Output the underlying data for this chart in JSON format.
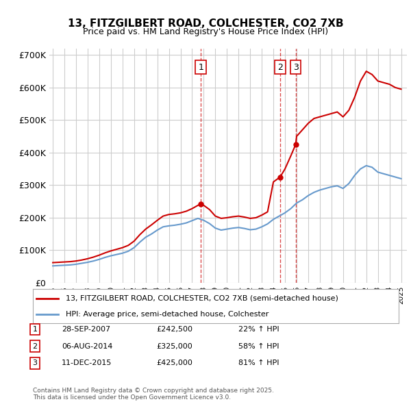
{
  "title": "13, FITZGILBERT ROAD, COLCHESTER, CO2 7XB",
  "subtitle": "Price paid vs. HM Land Registry's House Price Index (HPI)",
  "ylabel": "",
  "ylim": [
    0,
    720000
  ],
  "yticks": [
    0,
    100000,
    200000,
    300000,
    400000,
    500000,
    600000,
    700000
  ],
  "ytick_labels": [
    "£0",
    "£100K",
    "£200K",
    "£300K",
    "£400K",
    "£500K",
    "£600K",
    "£700K"
  ],
  "background_color": "#ffffff",
  "grid_color": "#cccccc",
  "sale_color": "#cc0000",
  "hpi_color": "#6699cc",
  "sale_label": "13, FITZGILBERT ROAD, COLCHESTER, CO2 7XB (semi-detached house)",
  "hpi_label": "HPI: Average price, semi-detached house, Colchester",
  "transactions": [
    {
      "num": 1,
      "date": "28-SEP-2007",
      "price": 242500,
      "pct": "22%",
      "dir": "↑",
      "year": 2007.75
    },
    {
      "num": 2,
      "date": "06-AUG-2014",
      "price": 325000,
      "pct": "58%",
      "dir": "↑",
      "year": 2014.58
    },
    {
      "num": 3,
      "date": "11-DEC-2015",
      "price": 425000,
      "pct": "81%",
      "dir": "↑",
      "year": 2015.92
    }
  ],
  "footer": "Contains HM Land Registry data © Crown copyright and database right 2025.\nThis data is licensed under the Open Government Licence v3.0.",
  "sale_years": [
    1995.0,
    1995.5,
    1996.0,
    1996.5,
    1997.0,
    1997.5,
    1998.0,
    1998.5,
    1999.0,
    1999.5,
    2000.0,
    2000.5,
    2001.0,
    2001.5,
    2002.0,
    2002.5,
    2003.0,
    2003.5,
    2004.0,
    2004.5,
    2005.0,
    2005.5,
    2006.0,
    2006.5,
    2007.0,
    2007.5,
    2007.75,
    2008.0,
    2008.5,
    2009.0,
    2009.5,
    2010.0,
    2010.5,
    2011.0,
    2011.5,
    2012.0,
    2012.5,
    2013.0,
    2013.5,
    2014.0,
    2014.58,
    2015.0,
    2015.5,
    2015.92,
    2016.0,
    2016.5,
    2017.0,
    2017.5,
    2018.0,
    2018.5,
    2019.0,
    2019.5,
    2020.0,
    2020.5,
    2021.0,
    2021.5,
    2022.0,
    2022.5,
    2023.0,
    2023.5,
    2024.0,
    2024.5,
    2025.0
  ],
  "sale_values": [
    62000,
    63000,
    64000,
    65000,
    67000,
    70000,
    74000,
    79000,
    85000,
    92000,
    98000,
    103000,
    108000,
    115000,
    128000,
    148000,
    165000,
    178000,
    192000,
    205000,
    210000,
    212000,
    215000,
    220000,
    228000,
    238000,
    242500,
    238000,
    225000,
    205000,
    198000,
    200000,
    203000,
    205000,
    202000,
    198000,
    200000,
    208000,
    218000,
    310000,
    325000,
    350000,
    390000,
    425000,
    450000,
    470000,
    490000,
    505000,
    510000,
    515000,
    520000,
    525000,
    510000,
    530000,
    570000,
    620000,
    650000,
    640000,
    620000,
    615000,
    610000,
    600000,
    595000
  ],
  "hpi_years": [
    1995.0,
    1995.5,
    1996.0,
    1996.5,
    1997.0,
    1997.5,
    1998.0,
    1998.5,
    1999.0,
    1999.5,
    2000.0,
    2000.5,
    2001.0,
    2001.5,
    2002.0,
    2002.5,
    2003.0,
    2003.5,
    2004.0,
    2004.5,
    2005.0,
    2005.5,
    2006.0,
    2006.5,
    2007.0,
    2007.5,
    2008.0,
    2008.5,
    2009.0,
    2009.5,
    2010.0,
    2010.5,
    2011.0,
    2011.5,
    2012.0,
    2012.5,
    2013.0,
    2013.5,
    2014.0,
    2014.5,
    2015.0,
    2015.5,
    2016.0,
    2016.5,
    2017.0,
    2017.5,
    2018.0,
    2018.5,
    2019.0,
    2019.5,
    2020.0,
    2020.5,
    2021.0,
    2021.5,
    2022.0,
    2022.5,
    2023.0,
    2023.5,
    2024.0,
    2024.5,
    2025.0
  ],
  "hpi_values": [
    52000,
    53000,
    54000,
    55000,
    57000,
    60000,
    63000,
    67000,
    72000,
    78000,
    83000,
    87000,
    91000,
    97000,
    108000,
    125000,
    140000,
    150000,
    162000,
    172000,
    175000,
    177000,
    180000,
    184000,
    191000,
    198000,
    192000,
    182000,
    168000,
    162000,
    165000,
    168000,
    170000,
    167000,
    163000,
    165000,
    172000,
    181000,
    195000,
    205000,
    215000,
    228000,
    245000,
    255000,
    268000,
    278000,
    285000,
    290000,
    295000,
    298000,
    290000,
    305000,
    330000,
    350000,
    360000,
    355000,
    340000,
    335000,
    330000,
    325000,
    320000
  ],
  "xtick_years": [
    1995,
    1996,
    1997,
    1998,
    1999,
    2000,
    2001,
    2002,
    2003,
    2004,
    2005,
    2006,
    2007,
    2008,
    2009,
    2010,
    2011,
    2012,
    2013,
    2014,
    2015,
    2016,
    2017,
    2018,
    2019,
    2020,
    2021,
    2022,
    2023,
    2024,
    2025
  ]
}
